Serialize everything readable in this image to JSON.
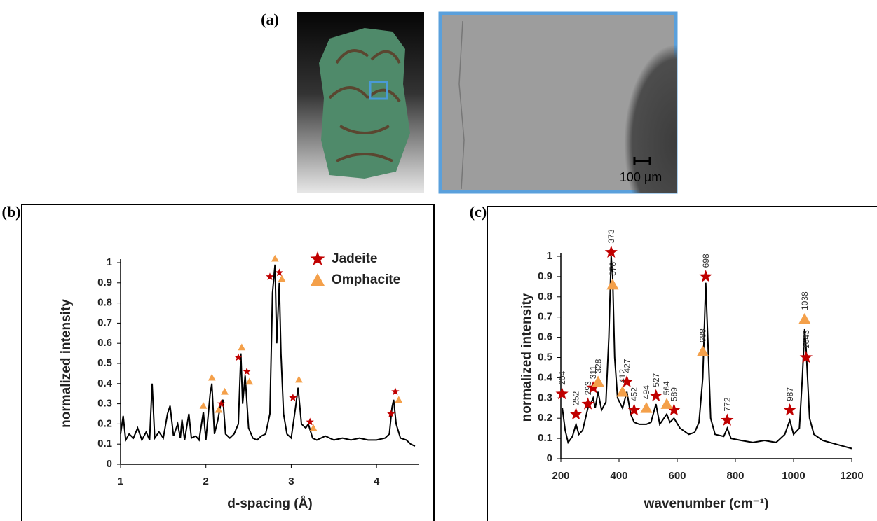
{
  "panel_labels": [
    "(a)",
    "(b)",
    "(c)"
  ],
  "micrograph": {
    "scale_bar": "100 µm"
  },
  "chart_data": [
    {
      "type": "line",
      "xlabel": "d-spacing (Å)",
      "ylabel": "normalized intensity",
      "color": "#000000",
      "xlim": [
        1,
        4.5
      ],
      "xticks": [
        1,
        2,
        3,
        4
      ],
      "ylim": [
        0,
        1
      ],
      "yticks": [
        0,
        0.1,
        0.2,
        0.3,
        0.4,
        0.5,
        0.6,
        0.7,
        0.8,
        0.9,
        1
      ],
      "legend": "upper right",
      "x": [
        1.0,
        1.03,
        1.06,
        1.1,
        1.15,
        1.2,
        1.25,
        1.3,
        1.34,
        1.37,
        1.4,
        1.45,
        1.5,
        1.55,
        1.58,
        1.62,
        1.67,
        1.7,
        1.72,
        1.75,
        1.8,
        1.83,
        1.88,
        1.92,
        1.97,
        2.0,
        2.05,
        2.07,
        2.1,
        2.14,
        2.17,
        2.2,
        2.23,
        2.28,
        2.33,
        2.38,
        2.41,
        2.43,
        2.46,
        2.5,
        2.55,
        2.6,
        2.65,
        2.7,
        2.75,
        2.78,
        2.81,
        2.83,
        2.86,
        2.88,
        2.91,
        2.95,
        3.0,
        3.05,
        3.08,
        3.12,
        3.17,
        3.2,
        3.25,
        3.3,
        3.4,
        3.5,
        3.6,
        3.7,
        3.8,
        3.9,
        4.0,
        4.1,
        4.15,
        4.18,
        4.2,
        4.23,
        4.28,
        4.35,
        4.4,
        4.45
      ],
      "values": [
        0.15,
        0.24,
        0.12,
        0.15,
        0.13,
        0.18,
        0.12,
        0.16,
        0.12,
        0.4,
        0.13,
        0.16,
        0.13,
        0.25,
        0.29,
        0.14,
        0.2,
        0.13,
        0.22,
        0.12,
        0.25,
        0.13,
        0.14,
        0.12,
        0.26,
        0.12,
        0.35,
        0.4,
        0.15,
        0.22,
        0.29,
        0.32,
        0.15,
        0.13,
        0.15,
        0.2,
        0.55,
        0.3,
        0.44,
        0.18,
        0.13,
        0.12,
        0.14,
        0.15,
        0.25,
        0.85,
        0.99,
        0.6,
        0.9,
        0.55,
        0.25,
        0.15,
        0.13,
        0.28,
        0.38,
        0.2,
        0.18,
        0.2,
        0.13,
        0.12,
        0.14,
        0.12,
        0.13,
        0.12,
        0.13,
        0.12,
        0.12,
        0.13,
        0.15,
        0.28,
        0.32,
        0.2,
        0.13,
        0.12,
        0.1,
        0.09
      ],
      "markers": [
        {
          "name": "Jadeite",
          "shape": "star",
          "color": "#c00000",
          "x": [
            2.18,
            2.38,
            2.48,
            2.75,
            2.86,
            3.02,
            3.22,
            4.17,
            4.22
          ],
          "values": [
            0.3,
            0.53,
            0.46,
            0.93,
            0.95,
            0.33,
            0.21,
            0.25,
            0.36
          ]
        },
        {
          "name": "Omphacite",
          "shape": "triangle",
          "color": "#f4a04a",
          "x": [
            1.97,
            2.07,
            2.15,
            2.22,
            2.42,
            2.51,
            2.81,
            2.89,
            3.09,
            3.26,
            4.26
          ],
          "values": [
            0.29,
            0.43,
            0.27,
            0.36,
            0.58,
            0.41,
            1.02,
            0.92,
            0.42,
            0.18,
            0.32
          ]
        }
      ]
    },
    {
      "type": "line",
      "xlabel": "wavenumber (cm⁻¹)",
      "ylabel": "normalized intensity",
      "color": "#000000",
      "xlim": [
        200,
        1200
      ],
      "xticks": [
        200,
        400,
        600,
        800,
        1000,
        1200
      ],
      "ylim": [
        0,
        1
      ],
      "yticks": [
        0,
        0.1,
        0.2,
        0.3,
        0.4,
        0.5,
        0.6,
        0.7,
        0.8,
        0.9,
        1
      ],
      "x": [
        205,
        215,
        225,
        240,
        252,
        262,
        275,
        293,
        305,
        311,
        318,
        328,
        340,
        355,
        365,
        373,
        378,
        385,
        395,
        412,
        427,
        440,
        452,
        470,
        494,
        510,
        527,
        540,
        564,
        575,
        589,
        610,
        640,
        660,
        675,
        688,
        698,
        705,
        715,
        730,
        760,
        772,
        785,
        820,
        860,
        900,
        940,
        970,
        987,
        1000,
        1020,
        1030,
        1038,
        1043,
        1055,
        1070,
        1100,
        1150,
        1200
      ],
      "values": [
        0.25,
        0.14,
        0.08,
        0.11,
        0.17,
        0.12,
        0.14,
        0.25,
        0.28,
        0.3,
        0.25,
        0.33,
        0.24,
        0.28,
        0.6,
        1.0,
        0.9,
        0.5,
        0.3,
        0.25,
        0.33,
        0.22,
        0.18,
        0.17,
        0.17,
        0.18,
        0.27,
        0.17,
        0.22,
        0.18,
        0.2,
        0.15,
        0.12,
        0.13,
        0.18,
        0.4,
        0.87,
        0.6,
        0.2,
        0.12,
        0.11,
        0.15,
        0.1,
        0.09,
        0.08,
        0.09,
        0.08,
        0.12,
        0.19,
        0.12,
        0.15,
        0.4,
        0.64,
        0.55,
        0.2,
        0.12,
        0.09,
        0.07,
        0.05
      ],
      "markers": [
        {
          "shape": "star",
          "color": "#c00000",
          "labeled": true,
          "x": [
            204,
            252,
            293,
            311,
            373,
            427,
            452,
            527,
            589,
            698,
            772,
            987,
            1043
          ],
          "values": [
            0.32,
            0.22,
            0.27,
            0.35,
            1.02,
            0.38,
            0.24,
            0.31,
            0.24,
            0.9,
            0.19,
            0.24,
            0.5
          ]
        },
        {
          "shape": "triangle",
          "color": "#f4a04a",
          "labeled": true,
          "x": [
            328,
            378,
            412,
            494,
            564,
            688,
            1038
          ],
          "values": [
            0.38,
            0.86,
            0.33,
            0.25,
            0.27,
            0.53,
            0.69
          ]
        }
      ]
    }
  ]
}
